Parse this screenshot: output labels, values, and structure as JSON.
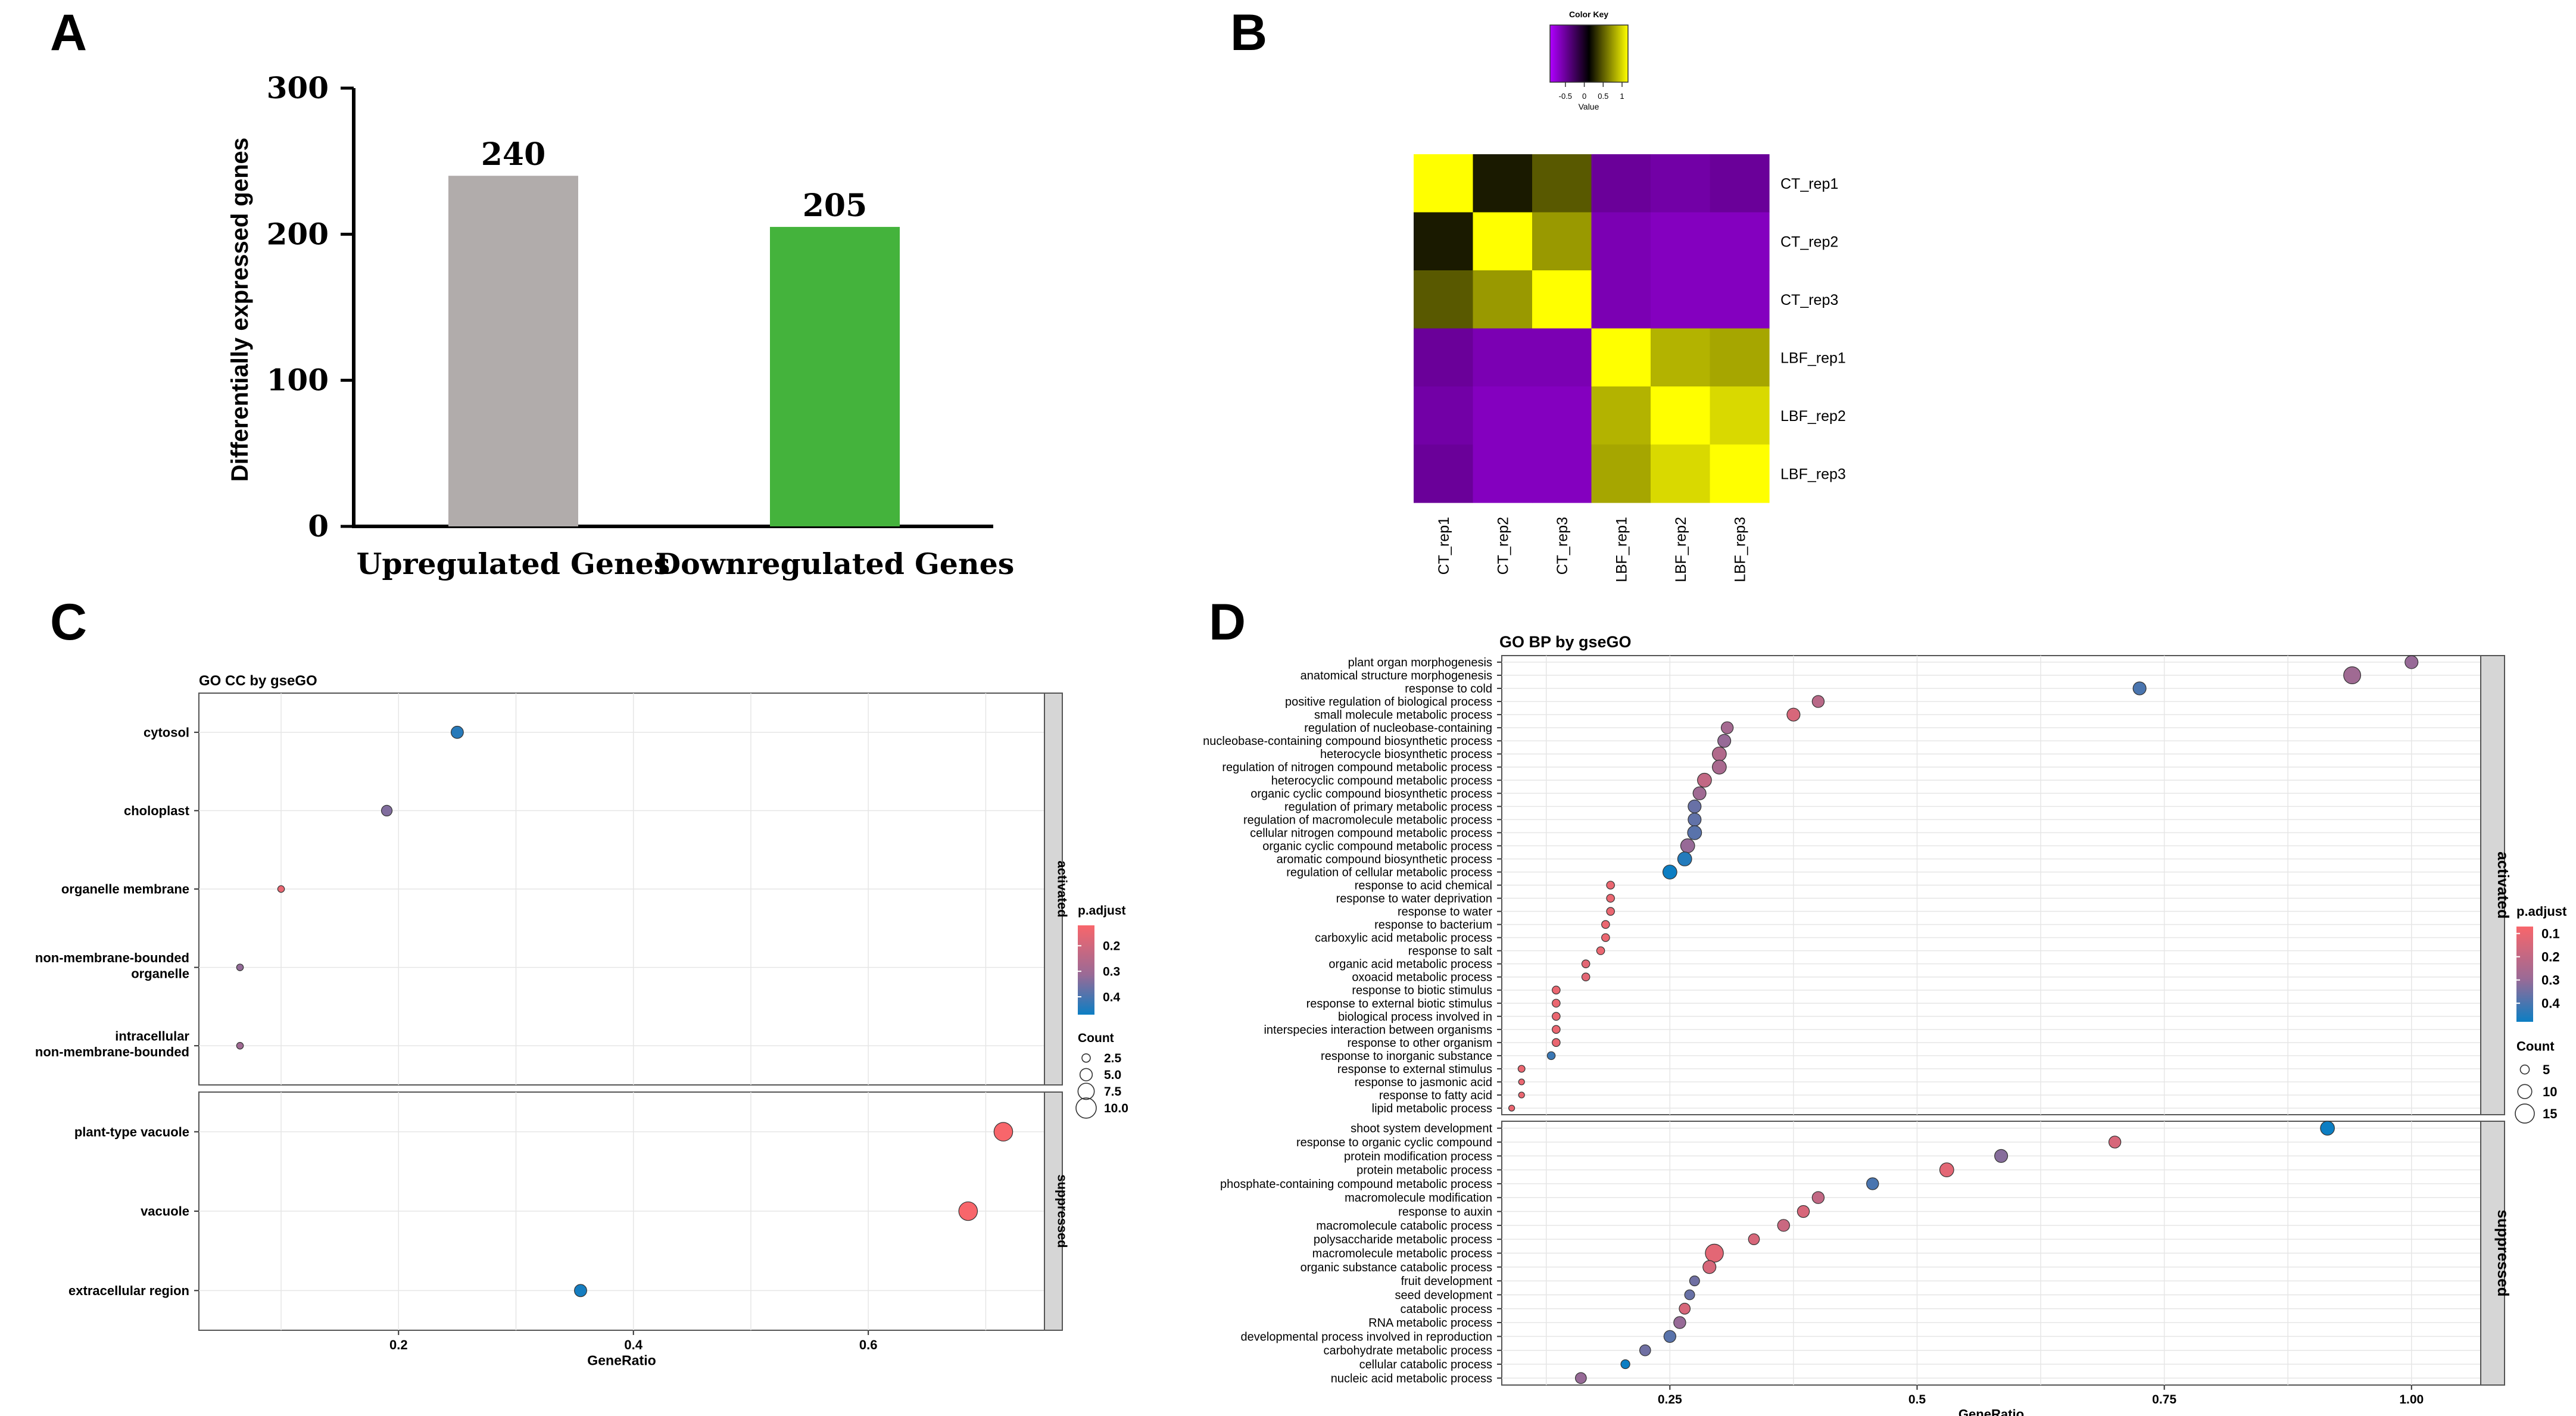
{
  "panel_letters": [
    "A",
    "B",
    "C",
    "D"
  ],
  "chart_data": [
    {
      "type": "bar",
      "panel": "A",
      "categories": [
        "Upregulated Genes",
        "Downregulated Genes"
      ],
      "values": [
        240,
        205
      ],
      "value_labels": [
        "240",
        "205"
      ],
      "colors": [
        "#b1acab",
        "#44b33c"
      ],
      "ylabel": "Differentially expressed genes",
      "ylim": [
        0,
        300
      ],
      "yticks": [
        "0",
        "100",
        "200",
        "300"
      ]
    },
    {
      "type": "heatmap",
      "panel": "B",
      "rows": [
        "CT_rep1",
        "CT_rep2",
        "CT_rep3",
        "LBF_rep1",
        "LBF_rep2",
        "LBF_rep3"
      ],
      "columns": [
        "CT_rep1",
        "CT_rep2",
        "CT_rep3",
        "LBF_rep1",
        "LBF_rep2",
        "LBF_rep3"
      ],
      "values": [
        [
          1.0,
          0.1,
          0.35,
          -0.6,
          -0.65,
          -0.6
        ],
        [
          0.1,
          1.0,
          0.6,
          -0.7,
          -0.75,
          -0.75
        ],
        [
          0.35,
          0.6,
          1.0,
          -0.7,
          -0.75,
          -0.75
        ],
        [
          -0.6,
          -0.7,
          -0.7,
          1.0,
          0.7,
          0.65
        ],
        [
          -0.65,
          -0.75,
          -0.75,
          0.7,
          1.0,
          0.85
        ],
        [
          -0.6,
          -0.75,
          -0.75,
          0.65,
          0.85,
          1.0
        ]
      ],
      "color_key": {
        "title": "Color Key",
        "xlabel": "Value",
        "ticks": [
          "-0.5",
          "0",
          "0.5",
          "1"
        ],
        "low_color": "#b000ff",
        "mid_color": "#000000",
        "high_color": "#ffff00"
      }
    },
    {
      "type": "scatter",
      "panel": "C",
      "title": "GO CC by gseGO",
      "xlabel": "GeneRatio",
      "xlim": [
        0.03,
        0.75
      ],
      "xticks": [
        "0.2",
        "0.4",
        "0.6"
      ],
      "facets": [
        {
          "name": "activated",
          "terms": [
            "cytosol",
            "choloplast",
            "organelle membrane",
            "non-membrane-bounded organelle",
            "intracellular non-membrane-bounded"
          ],
          "points": [
            {
              "term": "cytosol",
              "x": 0.25,
              "count": 5,
              "p_adjust": 0.44
            },
            {
              "term": "choloplast",
              "x": 0.19,
              "count": 4,
              "p_adjust": 0.34
            },
            {
              "term": "organelle membrane",
              "x": 0.1,
              "count": 1.5,
              "p_adjust": 0.15
            },
            {
              "term": "non-membrane-bounded organelle",
              "x": 0.065,
              "count": 1.5,
              "p_adjust": 0.32
            },
            {
              "term": "intracellular non-membrane-bounded",
              "x": 0.065,
              "count": 1.5,
              "p_adjust": 0.3
            }
          ]
        },
        {
          "name": "suppressed",
          "terms": [
            "plant-type vacuole",
            "vacuole",
            "extracellular region"
          ],
          "points": [
            {
              "term": "plant-type vacuole",
              "x": 0.715,
              "count": 9,
              "p_adjust": 0.12
            },
            {
              "term": "vacuole",
              "x": 0.685,
              "count": 9,
              "p_adjust": 0.12
            },
            {
              "term": "extracellular region",
              "x": 0.355,
              "count": 5,
              "p_adjust": 0.46
            }
          ]
        }
      ],
      "legend": {
        "color_title": "p.adjust",
        "color_ticks": [
          "0.2",
          "0.3",
          "0.4"
        ],
        "color_range": [
          0.12,
          0.47
        ],
        "size_title": "Count",
        "size_ticks": [
          "2.5",
          "5.0",
          "7.5",
          "10.0"
        ]
      }
    },
    {
      "type": "scatter",
      "panel": "D",
      "title": "GO BP by gseGO",
      "xlabel": "GeneRatio",
      "xlim": [
        0.08,
        1.07
      ],
      "xticks": [
        "0.25",
        "0.5",
        "0.75",
        "1.00"
      ],
      "facets": [
        {
          "name": "activated",
          "terms": [
            "plant organ morphogenesis",
            "anatomical structure morphogenesis",
            "response to cold",
            "positive regulation of biological process",
            "small molecule metabolic process",
            "regulation of nucleobase-containing",
            "nucleobase-containing compound biosynthetic process",
            "heterocycle biosynthetic process",
            "regulation of nitrogen compound metabolic process",
            "heterocyclic compound metabolic process",
            "organic cyclic compound biosynthetic process",
            "regulation of primary metabolic process",
            "regulation of macromolecule metabolic process",
            "cellular nitrogen compound metabolic process",
            "organic cyclic compound metabolic process",
            "aromatic compound biosynthetic process",
            "regulation of cellular metabolic process",
            "response to acid chemical",
            "response to water deprivation",
            "response to water",
            "response to bacterium",
            "carboxylic acid metabolic process",
            "response to salt",
            "organic acid metabolic process",
            "oxoacid metabolic process",
            "response to biotic stimulus",
            "response to external biotic stimulus",
            "biological process involved in",
            "interspecies interaction between organisms",
            "response to other organism",
            "response to inorganic substance",
            "response to external stimulus",
            "response to jasmonic acid",
            "response to fatty acid",
            "lipid metabolic process"
          ],
          "points": [
            {
              "term": "plant organ morphogenesis",
              "x": 1.0,
              "count": 9,
              "p_adjust": 0.3
            },
            {
              "term": "anatomical structure morphogenesis",
              "x": 0.94,
              "count": 13,
              "p_adjust": 0.28
            },
            {
              "term": "response to cold",
              "x": 0.725,
              "count": 9,
              "p_adjust": 0.4
            },
            {
              "term": "positive regulation of biological process",
              "x": 0.4,
              "count": 8,
              "p_adjust": 0.22
            },
            {
              "term": "small molecule metabolic process",
              "x": 0.375,
              "count": 9,
              "p_adjust": 0.15
            },
            {
              "term": "regulation of nucleobase-containing",
              "x": 0.308,
              "count": 8,
              "p_adjust": 0.27
            },
            {
              "term": "nucleobase-containing compound biosynthetic process",
              "x": 0.305,
              "count": 9,
              "p_adjust": 0.3
            },
            {
              "term": "heterocycle biosynthetic process",
              "x": 0.3,
              "count": 10,
              "p_adjust": 0.24
            },
            {
              "term": "regulation of nitrogen compound metabolic process",
              "x": 0.3,
              "count": 10,
              "p_adjust": 0.26
            },
            {
              "term": "heterocyclic compound metabolic process",
              "x": 0.285,
              "count": 10,
              "p_adjust": 0.2
            },
            {
              "term": "organic cyclic compound biosynthetic process",
              "x": 0.28,
              "count": 9,
              "p_adjust": 0.28
            },
            {
              "term": "regulation of primary metabolic process",
              "x": 0.275,
              "count": 9,
              "p_adjust": 0.36
            },
            {
              "term": "regulation of macromolecule metabolic process",
              "x": 0.275,
              "count": 9,
              "p_adjust": 0.37
            },
            {
              "term": "cellular nitrogen compound metabolic process",
              "x": 0.275,
              "count": 10,
              "p_adjust": 0.38
            },
            {
              "term": "organic cyclic compound metabolic process",
              "x": 0.268,
              "count": 10,
              "p_adjust": 0.3
            },
            {
              "term": "aromatic compound biosynthetic process",
              "x": 0.265,
              "count": 10,
              "p_adjust": 0.45
            },
            {
              "term": "regulation of cellular metabolic process",
              "x": 0.25,
              "count": 10,
              "p_adjust": 0.48
            },
            {
              "term": "response to acid chemical",
              "x": 0.19,
              "count": 4,
              "p_adjust": 0.1
            },
            {
              "term": "response to water deprivation",
              "x": 0.19,
              "count": 4,
              "p_adjust": 0.1
            },
            {
              "term": "response to water",
              "x": 0.19,
              "count": 4,
              "p_adjust": 0.1
            },
            {
              "term": "response to bacterium",
              "x": 0.185,
              "count": 4,
              "p_adjust": 0.1
            },
            {
              "term": "carboxylic acid metabolic process",
              "x": 0.185,
              "count": 4,
              "p_adjust": 0.1
            },
            {
              "term": "response to salt",
              "x": 0.18,
              "count": 4,
              "p_adjust": 0.1
            },
            {
              "term": "organic acid metabolic process",
              "x": 0.165,
              "count": 4,
              "p_adjust": 0.12
            },
            {
              "term": "oxoacid metabolic process",
              "x": 0.165,
              "count": 4,
              "p_adjust": 0.12
            },
            {
              "term": "response to biotic stimulus",
              "x": 0.135,
              "count": 4,
              "p_adjust": 0.1
            },
            {
              "term": "response to external biotic stimulus",
              "x": 0.135,
              "count": 4,
              "p_adjust": 0.1
            },
            {
              "term": "biological process involved in",
              "x": 0.135,
              "count": 4,
              "p_adjust": 0.1
            },
            {
              "term": "interspecies interaction between organisms",
              "x": 0.135,
              "count": 4,
              "p_adjust": 0.1
            },
            {
              "term": "response to other organism",
              "x": 0.135,
              "count": 4,
              "p_adjust": 0.1
            },
            {
              "term": "response to inorganic substance",
              "x": 0.13,
              "count": 4,
              "p_adjust": 0.42
            },
            {
              "term": "response to external stimulus",
              "x": 0.1,
              "count": 3,
              "p_adjust": 0.1
            },
            {
              "term": "response to jasmonic acid",
              "x": 0.1,
              "count": 2,
              "p_adjust": 0.1
            },
            {
              "term": "response to fatty acid",
              "x": 0.1,
              "count": 2,
              "p_adjust": 0.1
            },
            {
              "term": "lipid metabolic process",
              "x": 0.09,
              "count": 2,
              "p_adjust": 0.1
            }
          ]
        },
        {
          "name": "suppressed",
          "terms": [
            "shoot system development",
            "response to organic cyclic compound",
            "protein modification process",
            "protein metabolic process",
            "phosphate-containing compound metabolic process",
            "macromolecule modification",
            "response to auxin",
            "macromolecule catabolic process",
            "polysaccharide metabolic process",
            "macromolecule metabolic process",
            "organic substance catabolic process",
            "fruit development",
            "seed development",
            "catabolic process",
            "RNA metabolic process",
            "developmental process involved in reproduction",
            "carbohydrate metabolic process",
            "cellular catabolic process",
            "nucleic acid metabolic process"
          ],
          "points": [
            {
              "term": "shoot system development",
              "x": 0.915,
              "count": 10,
              "p_adjust": 0.48
            },
            {
              "term": "response to organic cyclic compound",
              "x": 0.7,
              "count": 8,
              "p_adjust": 0.15
            },
            {
              "term": "protein modification process",
              "x": 0.585,
              "count": 9,
              "p_adjust": 0.32
            },
            {
              "term": "protein metabolic process",
              "x": 0.53,
              "count": 10,
              "p_adjust": 0.12
            },
            {
              "term": "phosphate-containing compound metabolic process",
              "x": 0.455,
              "count": 8,
              "p_adjust": 0.4
            },
            {
              "term": "macromolecule modification",
              "x": 0.4,
              "count": 8,
              "p_adjust": 0.2
            },
            {
              "term": "response to auxin",
              "x": 0.385,
              "count": 8,
              "p_adjust": 0.15
            },
            {
              "term": "macromolecule catabolic process",
              "x": 0.365,
              "count": 8,
              "p_adjust": 0.18
            },
            {
              "term": "polysaccharide metabolic process",
              "x": 0.335,
              "count": 7,
              "p_adjust": 0.15
            },
            {
              "term": "macromolecule metabolic process",
              "x": 0.295,
              "count": 14,
              "p_adjust": 0.12
            },
            {
              "term": "organic substance catabolic process",
              "x": 0.29,
              "count": 9,
              "p_adjust": 0.15
            },
            {
              "term": "fruit development",
              "x": 0.275,
              "count": 6,
              "p_adjust": 0.35
            },
            {
              "term": "seed development",
              "x": 0.27,
              "count": 6,
              "p_adjust": 0.36
            },
            {
              "term": "catabolic process",
              "x": 0.265,
              "count": 7,
              "p_adjust": 0.15
            },
            {
              "term": "RNA metabolic process",
              "x": 0.26,
              "count": 8,
              "p_adjust": 0.3
            },
            {
              "term": "developmental process involved in reproduction",
              "x": 0.25,
              "count": 8,
              "p_adjust": 0.38
            },
            {
              "term": "carbohydrate metabolic process",
              "x": 0.225,
              "count": 7,
              "p_adjust": 0.35
            },
            {
              "term": "cellular catabolic process",
              "x": 0.205,
              "count": 5,
              "p_adjust": 0.48
            },
            {
              "term": "nucleic acid metabolic process",
              "x": 0.16,
              "count": 7,
              "p_adjust": 0.3
            }
          ]
        }
      ],
      "legend": {
        "color_title": "p.adjust",
        "color_ticks": [
          "0.1",
          "0.2",
          "0.3",
          "0.4"
        ],
        "color_range": [
          0.07,
          0.48
        ],
        "size_title": "Count",
        "size_ticks": [
          "5",
          "10",
          "15"
        ]
      }
    }
  ]
}
